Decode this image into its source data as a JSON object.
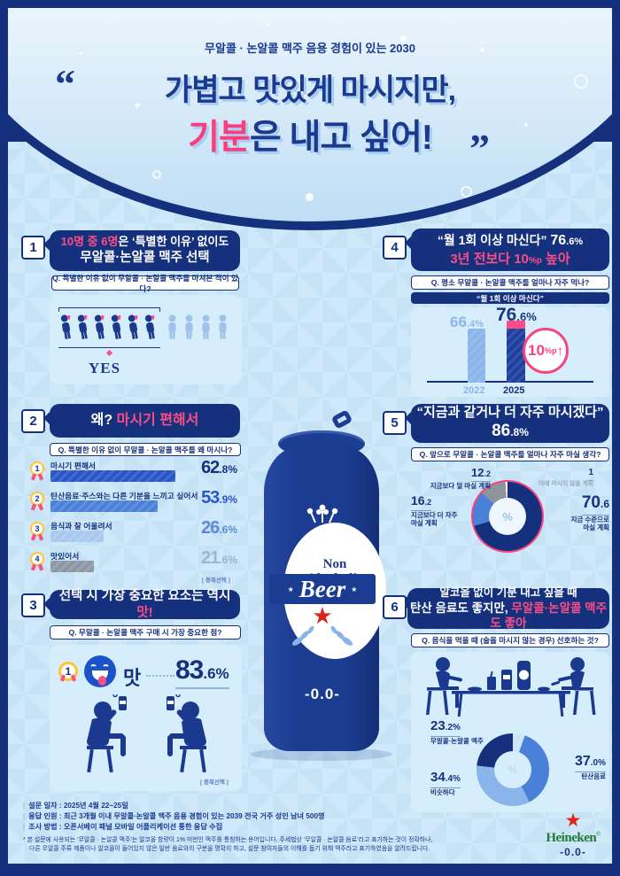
{
  "colors": {
    "navy": "#15317d",
    "headline_navy": "#1b3a8f",
    "royal": "#2a55c8",
    "blue": "#4a80d8",
    "bar_light": "#8ab5ea",
    "bar_lighter": "#a7c9ef",
    "gray": "#8d97a4",
    "donut_gray": "#8d949e",
    "pink": "#fb4d86",
    "accent_pink": "#f8447e",
    "sliver5": "#fdeef4",
    "sliver6": "#cfe6f9",
    "panel": "#d6edfb",
    "bg": "#c6e2f5",
    "heineken_green": "#1e7a38",
    "heineken_red": "#e0241a"
  },
  "header": {
    "subtitle": "무알콜 · 논알콜 맥주 음용 경험이 있는 2030",
    "quote_open": "“",
    "quote_close": "”",
    "line1": "가볍고 맛있게 마시지만,",
    "line2_hl": "기분",
    "line2_rest": "은 내고 싶어!"
  },
  "s1": {
    "num": "1",
    "title_hl": "10명 중 6명",
    "title_rest": "은 ‘특별한 이유’ 없이도",
    "title_line2": "무알콜·논알콜 맥주 선택",
    "question": "Q. 특별한 이유 없이 무알콜 · 논알콜 맥주를 마셔본 적이 있다?",
    "yes_label": "YES"
  },
  "s2": {
    "num": "2",
    "title_white": "왜?",
    "title_pink": "마시기 편해서",
    "question": "Q. 특별한 이유 없이 무알콜 · 논알콜 맥주를 왜 마시나?",
    "note": "[ 중복선택 ]",
    "items": [
      {
        "rank": "1",
        "label": "마시기 편해서",
        "int": "62",
        "dec": ".8%",
        "value": 62.8
      },
      {
        "rank": "2",
        "label": "탄산음료·주스와는 다른 기분을 느끼고 싶어서",
        "int": "53",
        "dec": ".9%",
        "value": 53.9
      },
      {
        "rank": "3",
        "label": "음식과 잘 어울려서",
        "int": "26",
        "dec": ".6%",
        "value": 26.6
      },
      {
        "rank": "4",
        "label": "맛있어서",
        "int": "21",
        "dec": ".6%",
        "value": 21.6
      }
    ]
  },
  "s3": {
    "num": "3",
    "title_white": "선택 시 가장 중요한 요소는 역시",
    "title_pink": "맛!",
    "question": "Q. 무알콜 · 논알콜 맥주 구매 시 가장 중요한 점?",
    "rank": "1",
    "stat_label": "맛",
    "int": "83",
    "dec": ".6%",
    "value": 83.6,
    "note": "[ 중복선택 ]"
  },
  "s4": {
    "num": "4",
    "title_quote": "“월 1회 이상 마신다”",
    "title_int": "76",
    "title_dec": ".6%",
    "title_pink_a": "3년 전보다 10",
    "title_pink_small": "%p",
    "title_pink_b": " 높아",
    "question": "Q. 평소 무알콜 · 논알콜 맥주를 얼마나 자주 먹나?",
    "subheader": "“월 1회 이상 마신다”",
    "delta_pp": 10,
    "badge_num": "10",
    "badge_unit": "%p",
    "badge_arrow": "↑",
    "bars": [
      {
        "year": "2022",
        "int": "66",
        "dec": ".4%",
        "value": 66.4
      },
      {
        "year": "2025",
        "int": "76",
        "dec": ".6%",
        "value": 76.6
      }
    ]
  },
  "s5": {
    "num": "5",
    "title": "“지금과 같거나 더 자주 마시겠다”",
    "title_int": "86",
    "title_dec": ".8%",
    "question": "Q. 앞으로 무알콜 · 논알콜 맥주를 얼마나 자주 마실 생각?",
    "center_label": "%",
    "slices": [
      {
        "int": "70",
        "dec": ".6",
        "label1": "지금 수준으로",
        "label2": "마실 계획",
        "value": 70.6
      },
      {
        "int": "16",
        "dec": ".2",
        "label1": "지금보다 더 자주",
        "label2": "마실 계획",
        "value": 16.2
      },
      {
        "int": "12",
        "dec": ".2",
        "label1": "지금보다 덜 마실 계획",
        "label2": "",
        "value": 12.2
      },
      {
        "int": "1",
        "dec": "",
        "label1": "아예 마시지 않을 계획",
        "label2": "",
        "value": 1
      }
    ]
  },
  "s6": {
    "num": "6",
    "title_line1": "알코올 없이 기분 내고 싶을 때",
    "title_white": "탄산 음료도 좋지만,",
    "title_pink": "무알콜·논알콜 맥주도 좋아",
    "question": "Q. 음식을 먹을 때 (술을 마시지 않는 경우) 선호하는 것?",
    "center_label": "%",
    "slices": [
      {
        "int": "",
        "dec": "",
        "label": "",
        "value": 5.4
      },
      {
        "int": "37",
        "dec": ".0%",
        "label": "탄산음료",
        "value": 37.0
      },
      {
        "int": "34",
        "dec": ".4%",
        "label": "비슷하다",
        "value": 34.4
      },
      {
        "int": "23",
        "dec": ".2%",
        "label": "무알콜·논알콜 맥주",
        "value": 23.2
      }
    ]
  },
  "can": {
    "line1": "Non",
    "line2": "Alcoholic",
    "name": "Beer",
    "star": "★",
    "abv": "-0.0-"
  },
  "footer": {
    "info": [
      {
        "label": "설문 일자 :",
        "value": "2025년 4월 22~25일"
      },
      {
        "label": "응답 인원 :",
        "value": "최근 3개월 이내 무알콜·논알콜 맥주 음용 경험이 있는 2039 전국 거주 성인 남녀 500명"
      },
      {
        "label": "조사 방법 :",
        "value": "오픈서베이 패널 모바일 어플리케이션 통한 응답 수집"
      }
    ],
    "disclaimer_line1": "* 본 설문에 사용되는 ‘무알콜 · 논알콜 맥주’는 알코올 함량이 1% 미만인 맥주를 통칭하는 용어입니다. 주세법상 ‘무알콜 · 논알콜 음료’라고 표기하는 것이 정확하나,",
    "disclaimer_line2": "다른 무알콜 주류 제품이나 알코올이 들어있지 않은 일반 음료와의 구분을 명확히 하고, 설문 참여자들의 이해를 돕기 위해 맥주라고 표기하였음을 알려드립니다.",
    "brand": "Heineken",
    "brand_reg": "®",
    "brand_sub": "-0.0-",
    "brand_star": "★"
  },
  "chart_data": [
    {
      "type": "bar",
      "title": "특별한 이유 없이 무알콜·논알콜 맥주를 마셔본 적이 있다 (pictogram, 10명 중)",
      "categories": [
        "YES",
        "기타"
      ],
      "values": [
        6,
        4
      ],
      "unit": "명"
    },
    {
      "type": "bar",
      "orientation": "horizontal",
      "title": "특별한 이유 없이 무알콜 · 논알콜 맥주를 왜 마시나 (중복선택)",
      "categories": [
        "마시기 편해서",
        "탄산음료·주스와는 다른 기분을 느끼고 싶어서",
        "음식과 잘 어울려서",
        "맛있어서"
      ],
      "values": [
        62.8,
        53.9,
        26.6,
        21.6
      ],
      "unit": "%"
    },
    {
      "type": "bar",
      "title": "“월 1회 이상 마신다” 응답률",
      "categories": [
        "2022",
        "2025"
      ],
      "values": [
        66.4,
        76.6
      ],
      "unit": "%",
      "annotation": "10%p↑",
      "ylim": [
        0,
        100
      ]
    },
    {
      "type": "pie",
      "title": "앞으로 무알콜 · 논알콜 맥주를 얼마나 자주 마실 생각",
      "labels": [
        "지금 수준으로 마실 계획",
        "지금보다 더 자주 마실 계획",
        "지금보다 덜 마실 계획",
        "아예 마시지 않을 계획"
      ],
      "values": [
        70.6,
        16.2,
        12.2,
        1
      ],
      "unit": "%"
    },
    {
      "type": "bar",
      "orientation": "horizontal",
      "title": "무알콜 · 논알콜 맥주 구매 시 가장 중요한 점 (중복선택)",
      "categories": [
        "맛"
      ],
      "values": [
        83.6
      ],
      "unit": "%"
    },
    {
      "type": "pie",
      "title": "음식을 먹을 때 (술을 마시지 않는 경우) 선호하는 것",
      "labels": [
        "탄산음료",
        "비슷하다",
        "무알콜·논알콜 맥주",
        ""
      ],
      "values": [
        37.0,
        34.4,
        23.2,
        5.4
      ],
      "unit": "%"
    }
  ]
}
